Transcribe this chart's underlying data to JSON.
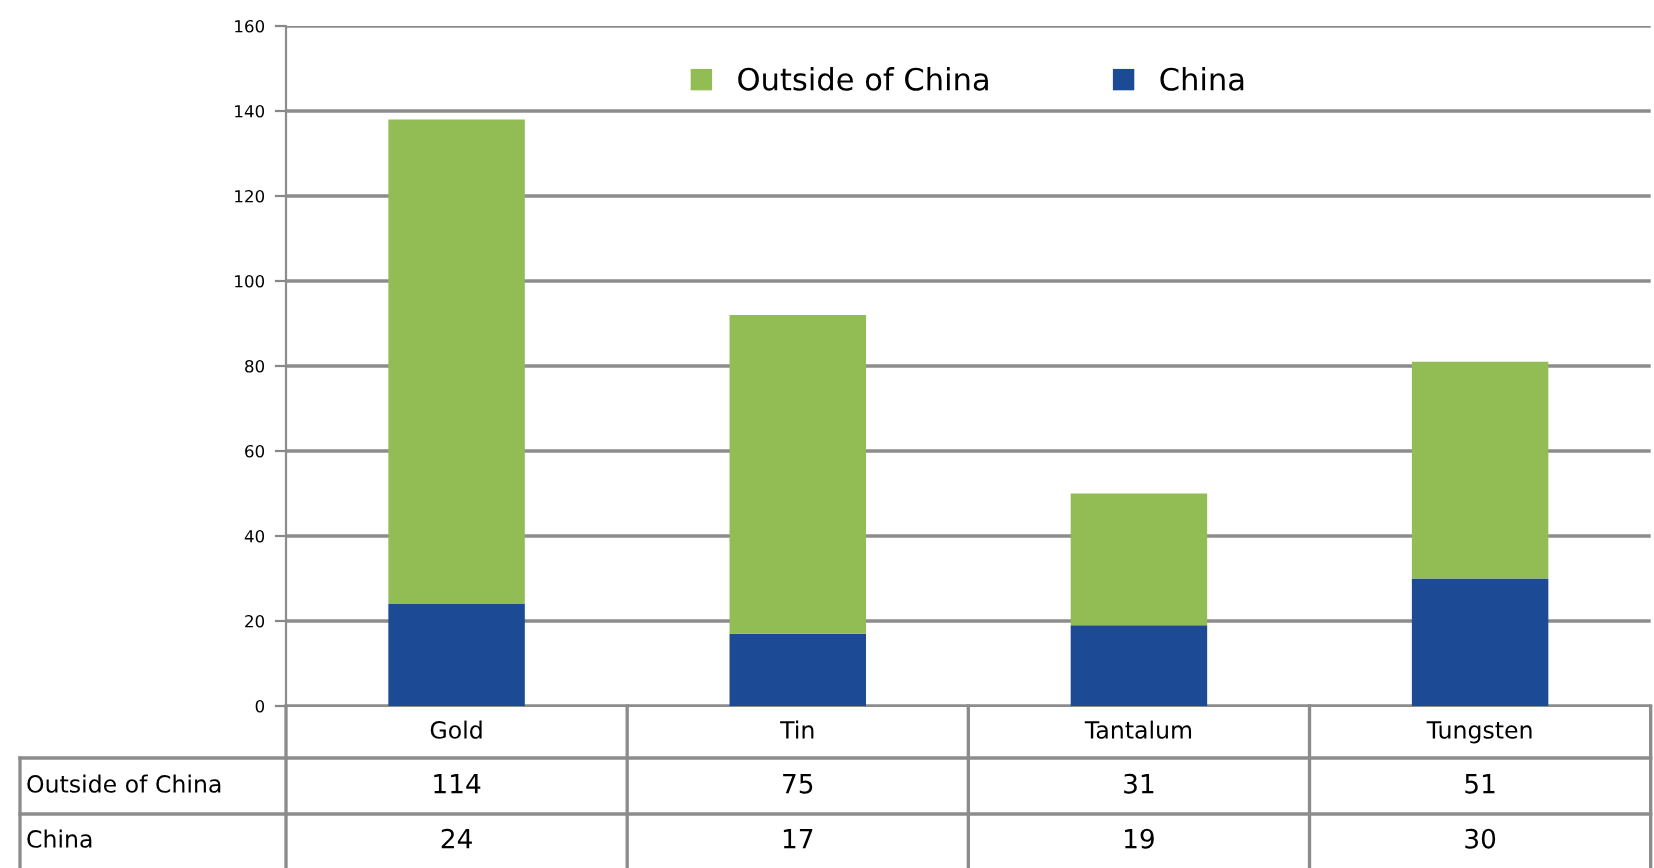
{
  "chart_data": {
    "type": "bar",
    "stacked": true,
    "categories": [
      "Gold",
      "Tin",
      "Tantalum",
      "Tungsten"
    ],
    "series": [
      {
        "name": "China",
        "color": "#1c4a94",
        "values": [
          24,
          17,
          19,
          30
        ]
      },
      {
        "name": "Outside of China",
        "color": "#92bd55",
        "values": [
          114,
          75,
          31,
          51
        ]
      }
    ],
    "ylim": [
      0,
      160
    ],
    "yticks": [
      0,
      20,
      40,
      60,
      80,
      100,
      120,
      140,
      160
    ],
    "grid": "y",
    "legend": "top",
    "data_labels": true
  }
}
